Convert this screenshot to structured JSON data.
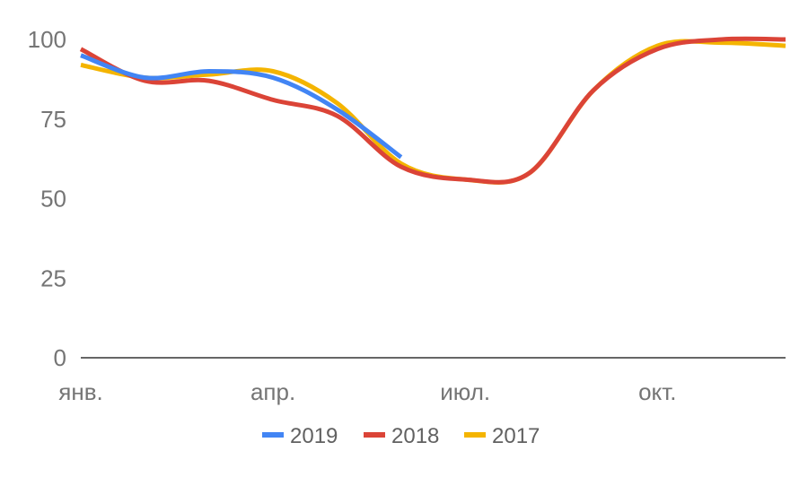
{
  "chart_data": {
    "type": "line",
    "title": "",
    "xlabel": "",
    "ylabel": "",
    "ylim": [
      0,
      100
    ],
    "yticks": [
      "0",
      "25",
      "50",
      "75",
      "100"
    ],
    "x_tick_labels": [
      "янв.",
      "апр.",
      "июл.",
      "окт."
    ],
    "months": [
      1,
      2,
      3,
      4,
      5,
      6,
      7,
      8,
      9,
      10,
      11,
      12
    ],
    "grid": false,
    "legend_position": "bottom",
    "series": [
      {
        "name": "2019",
        "color": "#4285F4",
        "values": [
          95,
          88,
          90,
          88,
          78,
          63,
          null,
          null,
          null,
          null,
          null,
          null
        ]
      },
      {
        "name": "2018",
        "color": "#DB4437",
        "values": [
          97,
          87,
          87,
          81,
          76,
          60,
          56,
          58,
          84,
          97,
          100,
          100
        ]
      },
      {
        "name": "2017",
        "color": "#F4B400",
        "values": [
          92,
          88,
          89,
          90,
          80,
          61,
          56,
          58,
          84,
          98,
          99,
          98
        ]
      }
    ]
  }
}
